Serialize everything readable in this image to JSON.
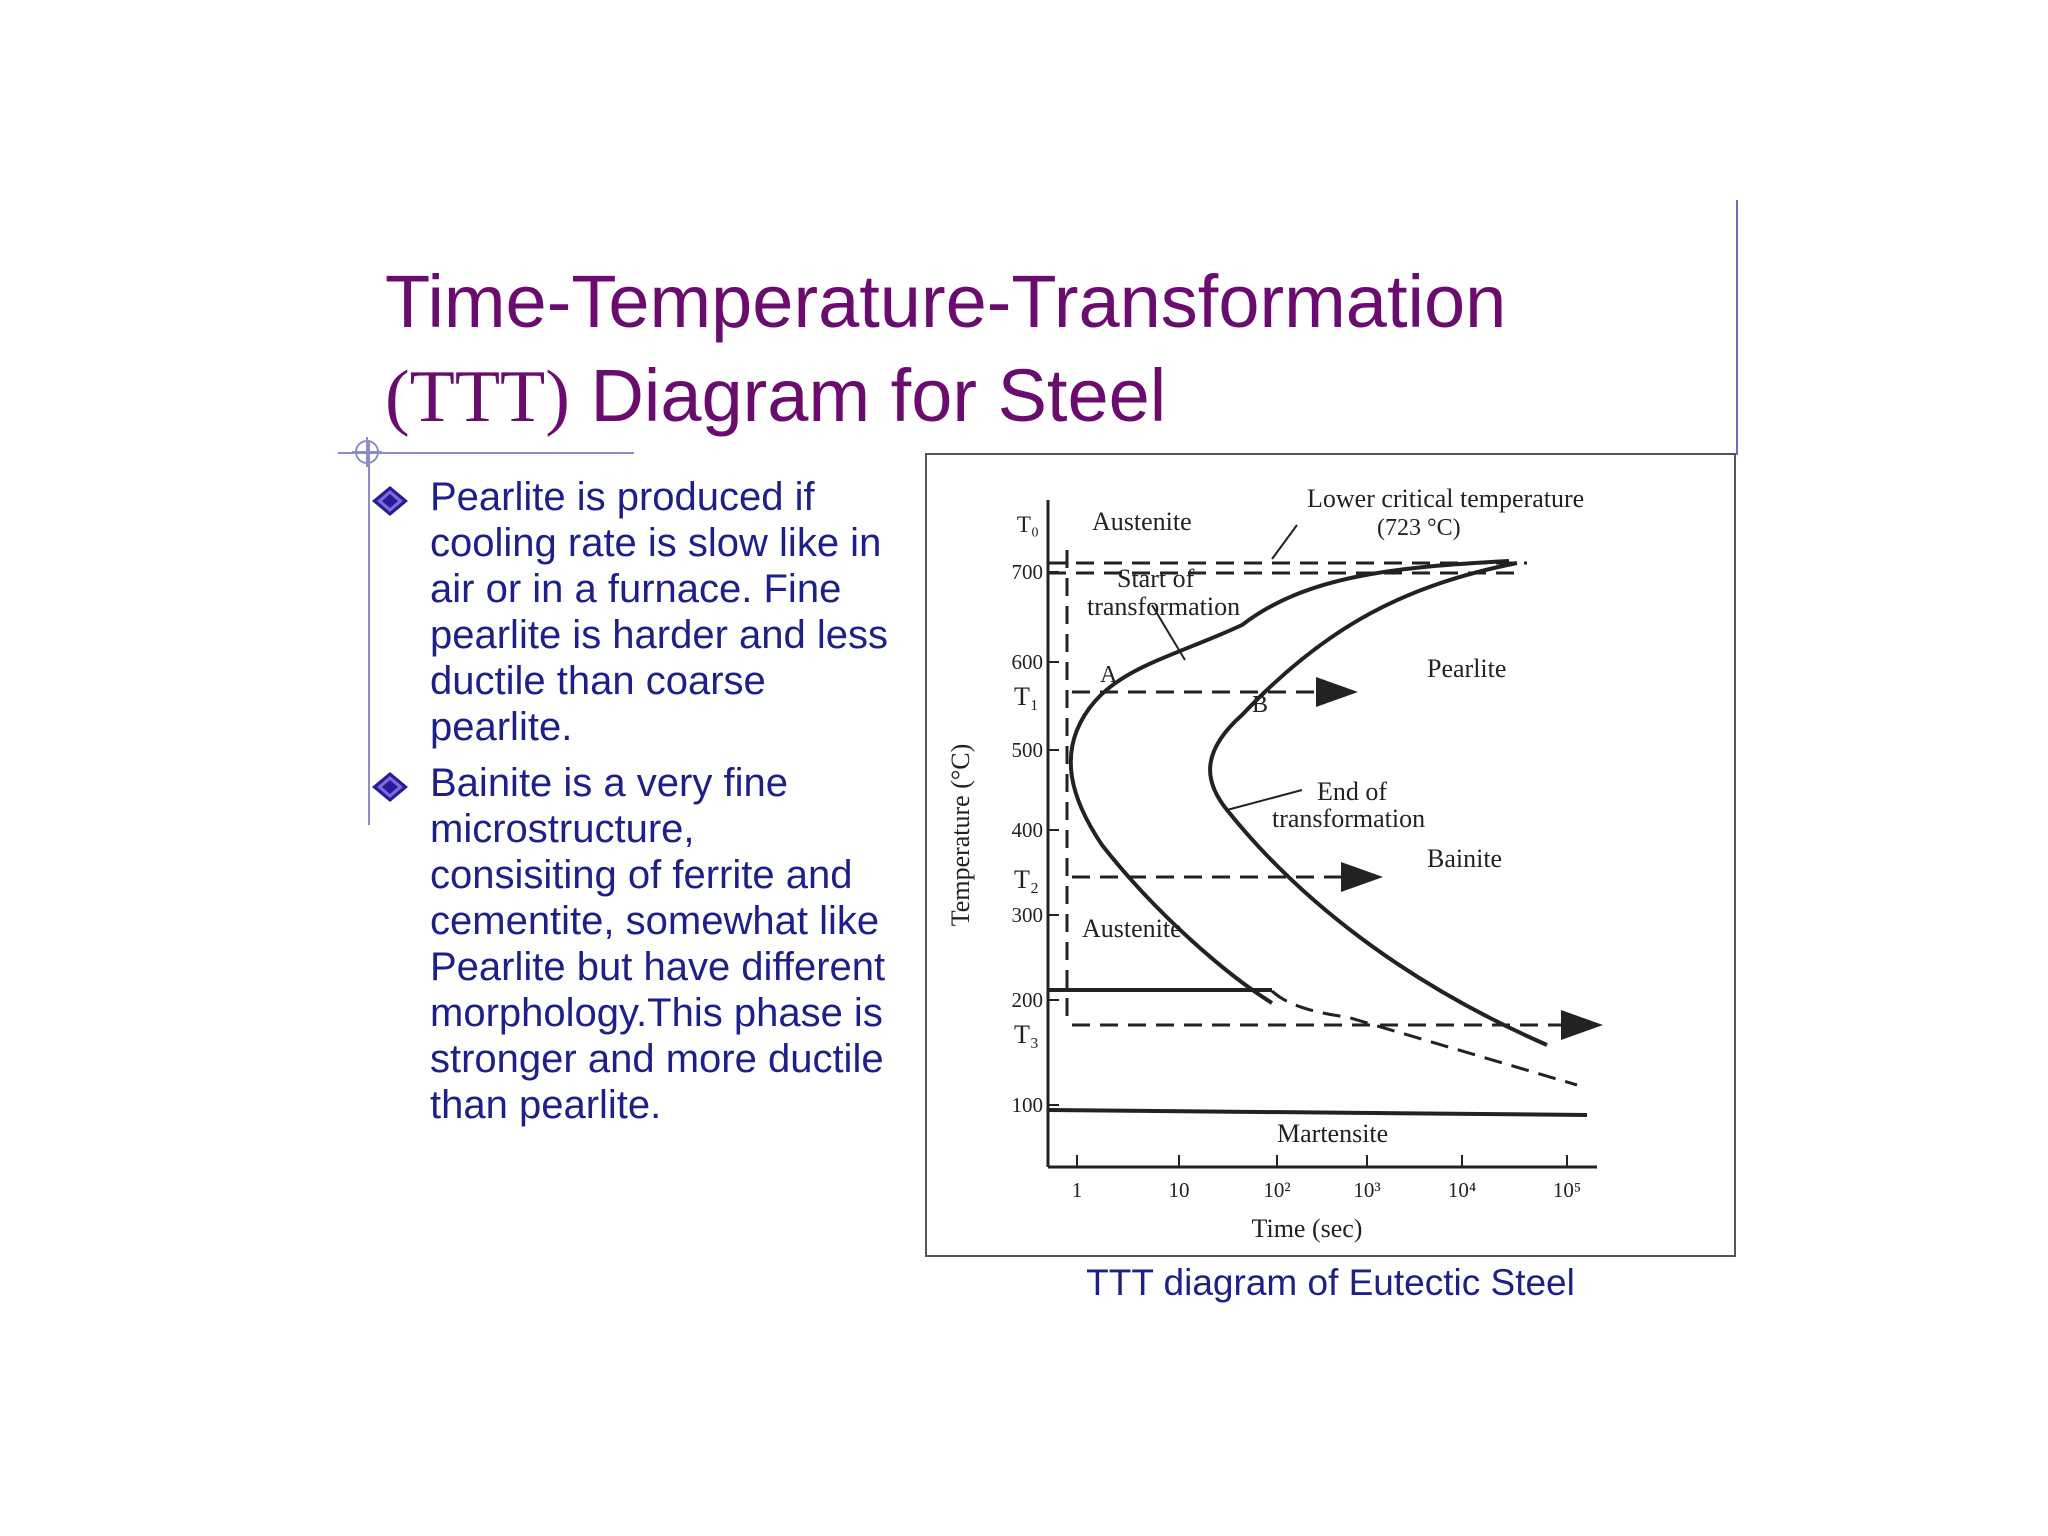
{
  "slide": {
    "title_line1": "Time-Temperature-Transformation",
    "title_paren": "(TTT)",
    "title_rest": " Diagram for Steel",
    "bullets": [
      "Pearlite is produced if cooling rate is slow like in air or in a furnace. Fine pearlite is harder and less ductile than coarse pearlite.",
      "Bainite is a very fine microstructure, consisiting of ferrite and cementite, somewhat like Pearlite but have different morphology.This phase is stronger and more ductile than pearlite."
    ],
    "caption": "TTT diagram of Eutectic Steel",
    "colors": {
      "title": "#6a0b6e",
      "body_text": "#1f1f8a",
      "bullet": "#2a1a9a"
    }
  },
  "diagram": {
    "y_axis_label": "Temperature (°C)",
    "x_axis_label": "Time (sec)",
    "y_ticks": [
      "700",
      "600",
      "500",
      "400",
      "300",
      "200",
      "100"
    ],
    "x_ticks": [
      "1",
      "10",
      "10²",
      "10³",
      "10⁴",
      "10⁵"
    ],
    "temp_markers": [
      "T₀",
      "T₁",
      "T₂",
      "T₃"
    ],
    "labels": {
      "austenite_top": "Austenite",
      "lower_critical_1": "Lower critical temperature",
      "lower_critical_2": "(723 °C)",
      "start_1": "Start of",
      "start_2": "transformation",
      "pearlite": "Pearlite",
      "point_a": "A",
      "point_b": "B",
      "end_1": "End of",
      "end_2": "transformation",
      "bainite": "Bainite",
      "austenite_low": "Austenite",
      "martensite": "Martensite"
    }
  }
}
